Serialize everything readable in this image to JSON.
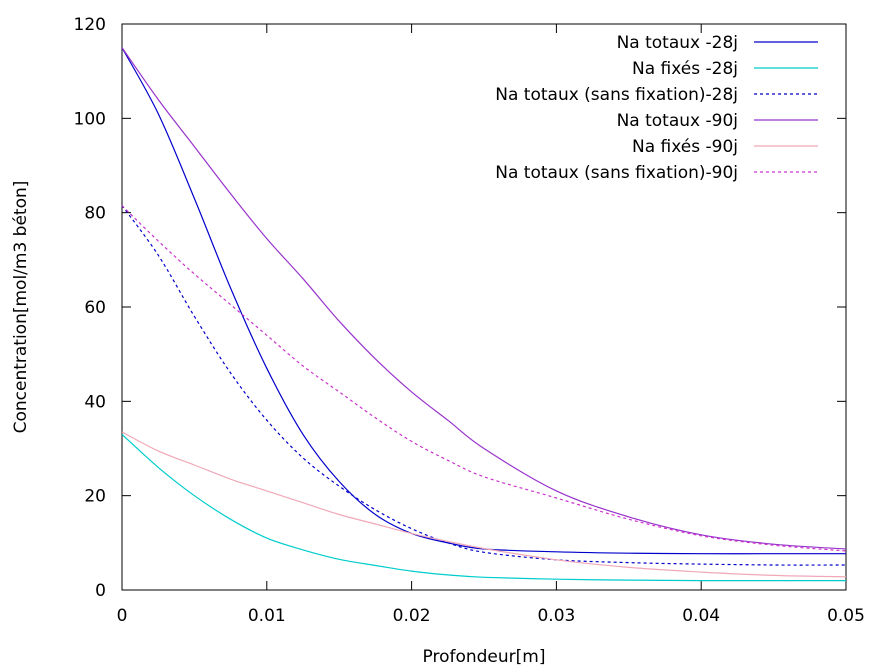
{
  "chart_data": {
    "type": "line",
    "xlabel": "Profondeur[m]",
    "ylabel": "Concentration[mol/m3 béton]",
    "xlim": [
      0,
      0.05
    ],
    "ylim": [
      0,
      120
    ],
    "xticks": [
      "0",
      "0.01",
      "0.02",
      "0.03",
      "0.04",
      "0.05"
    ],
    "yticks": [
      "0",
      "20",
      "40",
      "60",
      "80",
      "100",
      "120"
    ],
    "grid": false,
    "legend_position": "top-right",
    "series": [
      {
        "name": "Na totaux -28j",
        "color": "#0000cc",
        "style": "solid",
        "x": [
          0,
          0.0025,
          0.005,
          0.0075,
          0.01,
          0.0125,
          0.015,
          0.0175,
          0.02,
          0.0225,
          0.025,
          0.03,
          0.035,
          0.04,
          0.045,
          0.05
        ],
        "y": [
          115,
          101,
          83,
          64,
          47,
          33,
          23,
          16,
          12,
          10,
          8.7,
          8.1,
          7.8,
          7.7,
          7.7,
          7.7
        ]
      },
      {
        "name": "Na fixés -28j",
        "color": "#00cccc",
        "style": "solid",
        "x": [
          0,
          0.0025,
          0.005,
          0.0075,
          0.01,
          0.0125,
          0.015,
          0.0175,
          0.02,
          0.0225,
          0.025,
          0.03,
          0.035,
          0.04,
          0.045,
          0.05
        ],
        "y": [
          33,
          26,
          20,
          15,
          11,
          8.5,
          6.5,
          5.2,
          4.0,
          3.2,
          2.7,
          2.3,
          2.1,
          2.0,
          2.0,
          2.0
        ]
      },
      {
        "name": "Na totaux (sans fixation)-28j",
        "color": "#0000cc",
        "style": "dotted",
        "x": [
          0,
          0.0025,
          0.005,
          0.0075,
          0.01,
          0.0125,
          0.015,
          0.0175,
          0.02,
          0.0225,
          0.025,
          0.03,
          0.035,
          0.04,
          0.045,
          0.05
        ],
        "y": [
          81.5,
          71,
          58,
          46,
          36,
          28,
          22,
          17,
          13,
          10,
          8.0,
          6.4,
          5.8,
          5.5,
          5.3,
          5.3
        ]
      },
      {
        "name": "Na totaux -90j",
        "color": "#9933cc",
        "style": "solid",
        "x": [
          0,
          0.0025,
          0.005,
          0.0075,
          0.01,
          0.0125,
          0.015,
          0.0175,
          0.02,
          0.0225,
          0.025,
          0.03,
          0.035,
          0.04,
          0.045,
          0.05
        ],
        "y": [
          115,
          104,
          94,
          84,
          74.5,
          66,
          57,
          49,
          42,
          36,
          30,
          21,
          15.5,
          11.7,
          9.7,
          8.7
        ]
      },
      {
        "name": "Na fixés -90j",
        "color": "#f0a8b8",
        "style": "solid",
        "x": [
          0,
          0.0025,
          0.005,
          0.0075,
          0.01,
          0.0125,
          0.015,
          0.0175,
          0.02,
          0.0225,
          0.025,
          0.03,
          0.035,
          0.04,
          0.045,
          0.05
        ],
        "y": [
          33.5,
          29.5,
          26.5,
          23.5,
          21,
          18.5,
          16,
          14,
          12,
          10.3,
          8.8,
          6.4,
          4.8,
          3.8,
          3.1,
          2.8
        ]
      },
      {
        "name": "Na totaux (sans fixation)-90j",
        "color": "#cc33cc",
        "style": "dotted",
        "x": [
          0,
          0.0025,
          0.005,
          0.0075,
          0.01,
          0.0125,
          0.015,
          0.0175,
          0.02,
          0.0225,
          0.025,
          0.03,
          0.035,
          0.04,
          0.045,
          0.05
        ],
        "y": [
          81.5,
          74,
          67,
          60.5,
          54,
          47.5,
          42,
          36.5,
          31.5,
          27.5,
          24,
          19.5,
          15,
          11.5,
          9.5,
          8.3
        ]
      }
    ]
  }
}
